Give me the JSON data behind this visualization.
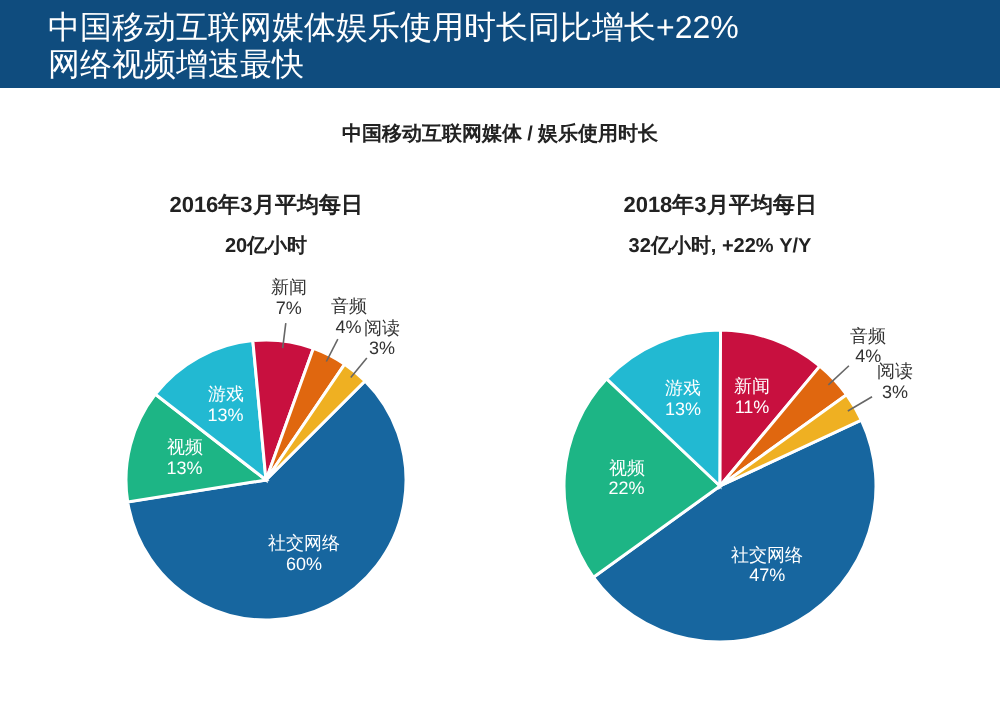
{
  "chart_data": [
    {
      "type": "pie",
      "title": "2016年3月平均每日",
      "subtitle": "20亿小时",
      "annotations": [
        "中国移动互联网媒体娱乐使用时长同比增长+22%\n网络视频增速最快",
        "中国移动互联网媒体 / 娱乐使用时长"
      ],
      "categories": [
        "社交网络",
        "视频",
        "游戏",
        "新闻",
        "音频",
        "阅读"
      ],
      "values": [
        60,
        13,
        13,
        7,
        4,
        3
      ],
      "value_labels": [
        "60%",
        "13%",
        "13%",
        "7%",
        "4%",
        "3%"
      ],
      "colors": [
        "#17669f",
        "#1db585",
        "#22b9d2",
        "#c8103f",
        "#e0670f",
        "#efb022"
      ],
      "legend": false
    },
    {
      "type": "pie",
      "title": "2018年3月平均每日",
      "subtitle": "32亿小时, +22% Y/Y",
      "categories": [
        "社交网络",
        "视频",
        "游戏",
        "新闻",
        "音频",
        "阅读"
      ],
      "values": [
        47,
        22,
        13,
        11,
        4,
        3
      ],
      "value_labels": [
        "47%",
        "22%",
        "13%",
        "11%",
        "4%",
        "3%"
      ],
      "colors": [
        "#17669f",
        "#1db585",
        "#22b9d2",
        "#c8103f",
        "#e0670f",
        "#efb022"
      ],
      "legend": false
    }
  ]
}
